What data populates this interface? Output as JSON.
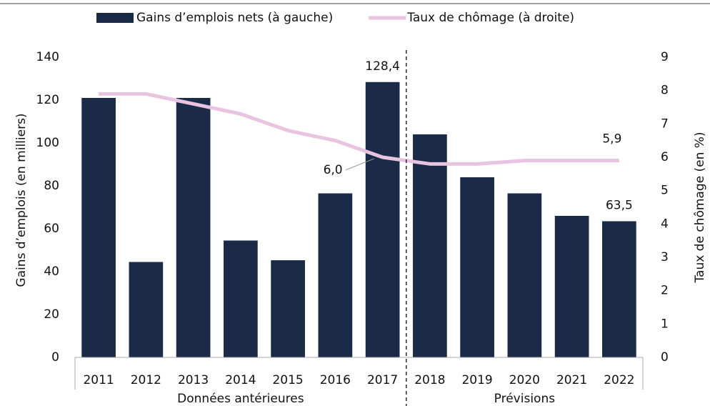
{
  "chart_data": {
    "type": "bar_line",
    "categories": [
      "2011",
      "2012",
      "2013",
      "2014",
      "2015",
      "2016",
      "2017",
      "2018",
      "2019",
      "2020",
      "2021",
      "2022"
    ],
    "groups": [
      {
        "label": "Données antérieures",
        "count": 7
      },
      {
        "label": "Prévisions",
        "count": 5
      }
    ],
    "series": [
      {
        "name": "Gains d’emplois nets (à gauche)",
        "type": "bar",
        "color": "#1b2a47",
        "values": [
          121,
          44.5,
          121,
          54.5,
          45.3,
          76.5,
          128.4,
          104,
          84,
          76.5,
          66,
          63.5
        ],
        "value_labels": [
          null,
          null,
          null,
          null,
          null,
          null,
          "128,4",
          null,
          null,
          null,
          null,
          "63,5"
        ]
      },
      {
        "name": "Taux de chômage (à droite)",
        "type": "line",
        "axis": "y2",
        "color": "#e8c4e0",
        "values": [
          7.9,
          7.9,
          7.6,
          7.3,
          6.8,
          6.5,
          6.0,
          5.8,
          5.8,
          5.9,
          5.9,
          5.9
        ],
        "value_labels": [
          null,
          null,
          null,
          null,
          null,
          null,
          "6,0",
          null,
          null,
          null,
          null,
          "5,9"
        ]
      }
    ],
    "ylabel": "Gains d’emplois (en milliers)",
    "y2label": "Taux de chômage (en %)",
    "ylim": [
      0,
      140
    ],
    "yticks": [
      0,
      20,
      40,
      60,
      80,
      100,
      120,
      140
    ],
    "y2lim": [
      0,
      9
    ],
    "y2ticks": [
      0,
      1,
      2,
      3,
      4,
      5,
      6,
      7,
      8,
      9
    ]
  }
}
